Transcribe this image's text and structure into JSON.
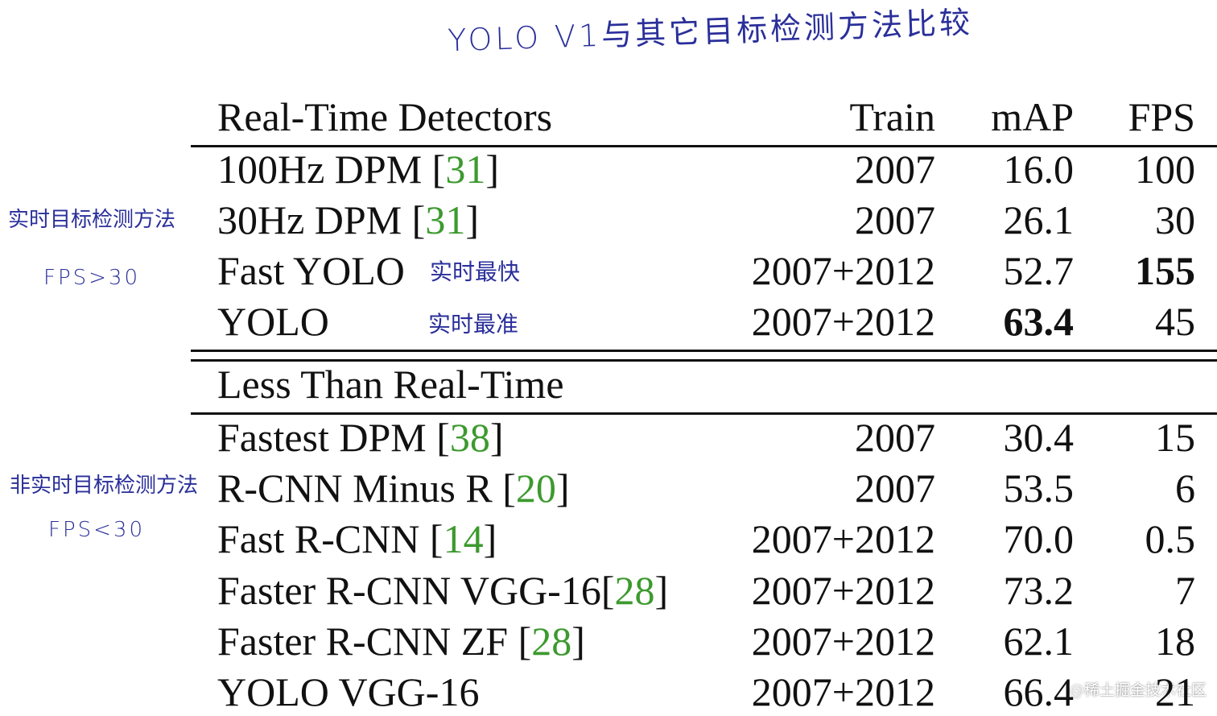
{
  "annotations": {
    "title": "YOLO V1与其它目标检测方法比较",
    "realtime": "实时目标检测方法",
    "realtime_fps": "FPS>30",
    "fastest": "实时最快",
    "most_accurate": "实时最准",
    "non_realtime": "非实时目标检测方法",
    "non_realtime_fps": "FPS<30",
    "watermark": "@稀土掘金技术社区"
  },
  "table": {
    "columns": [
      "Train",
      "mAP",
      "FPS"
    ],
    "sections": [
      {
        "heading": "Real-Time Detectors",
        "rows": [
          {
            "method": {
              "text": "100Hz DPM [",
              "ref": "31",
              "end": "]"
            },
            "train": "2007",
            "map": "16.0",
            "fps": "100"
          },
          {
            "method": {
              "text": "30Hz DPM [",
              "ref": "31",
              "end": "]"
            },
            "train": "2007",
            "map": "26.1",
            "fps": "30"
          },
          {
            "method": {
              "text": "Fast YOLO"
            },
            "train": "2007+2012",
            "map": "52.7",
            "fps": "155",
            "bold": "fps"
          },
          {
            "method": {
              "text": "YOLO"
            },
            "train": "2007+2012",
            "map": "63.4",
            "fps": "45",
            "bold": "map"
          }
        ]
      },
      {
        "heading": "Less Than Real-Time",
        "rows": [
          {
            "method": {
              "text": "Fastest DPM [",
              "ref": "38",
              "end": "]"
            },
            "train": "2007",
            "map": "30.4",
            "fps": "15"
          },
          {
            "method": {
              "text": "R-CNN Minus R [",
              "ref": "20",
              "end": "]"
            },
            "train": "2007",
            "map": "53.5",
            "fps": "6"
          },
          {
            "method": {
              "text": "Fast R-CNN [",
              "ref": "14",
              "end": "]"
            },
            "train": "2007+2012",
            "map": "70.0",
            "fps": "0.5"
          },
          {
            "method": {
              "text": "Faster R-CNN VGG-16[",
              "ref": "28",
              "end": "]"
            },
            "train": "2007+2012",
            "map": "73.2",
            "fps": "7"
          },
          {
            "method": {
              "text": "Faster R-CNN ZF [",
              "ref": "28",
              "end": "]"
            },
            "train": "2007+2012",
            "map": "62.1",
            "fps": "18"
          },
          {
            "method": {
              "text": "YOLO VGG-16"
            },
            "train": "2007+2012",
            "map": "66.4",
            "fps": "21"
          }
        ]
      }
    ]
  }
}
